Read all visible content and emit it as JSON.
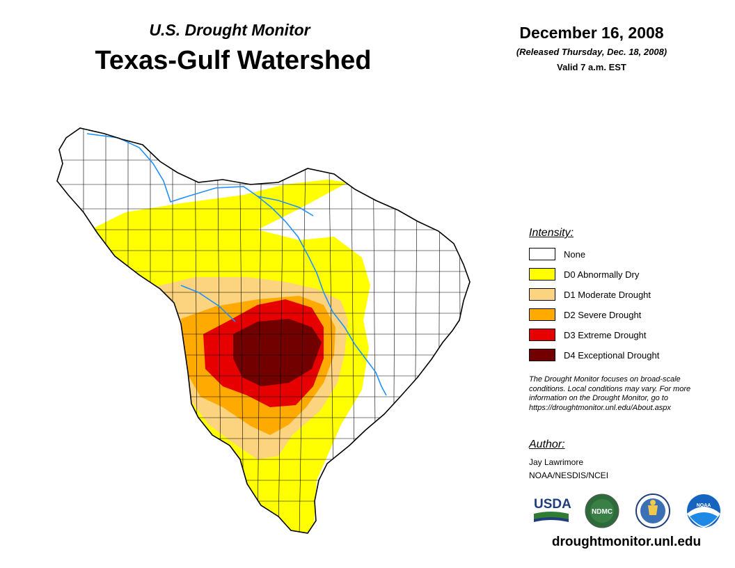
{
  "header": {
    "subtitle": "U.S. Drought Monitor",
    "title": "Texas-Gulf Watershed",
    "date": "December 16, 2008",
    "released": "(Released Thursday, Dec. 18, 2008)",
    "valid": "Valid 7 a.m. EST"
  },
  "legend": {
    "heading": "Intensity:",
    "items": [
      {
        "label": "None",
        "color": "#ffffff"
      },
      {
        "label": "D0 Abnormally Dry",
        "color": "#ffff00"
      },
      {
        "label": "D1 Moderate Drought",
        "color": "#fcd37f"
      },
      {
        "label": "D2 Severe Drought",
        "color": "#ffaa00"
      },
      {
        "label": "D3 Extreme Drought",
        "color": "#e60000"
      },
      {
        "label": "D4 Exceptional Drought",
        "color": "#730000"
      }
    ]
  },
  "note": {
    "line1": "The Drought Monitor focuses on broad-scale",
    "line2": "conditions. Local conditions may vary. For more",
    "line3": "information on the Drought Monitor, go to",
    "line4": "https://droughtmonitor.unl.edu/About.aspx"
  },
  "author": {
    "heading": "Author:",
    "name": "Jay Lawrimore",
    "org": "NOAA/NESDIS/NCEI"
  },
  "logos": {
    "usda": "USDA",
    "ndmc": "NDMC",
    "noaa": "NOAA"
  },
  "footer": {
    "url": "droughtmonitor.unl.edu"
  },
  "map": {
    "river_color": "#1e90ff",
    "boundary_color": "#000000"
  }
}
